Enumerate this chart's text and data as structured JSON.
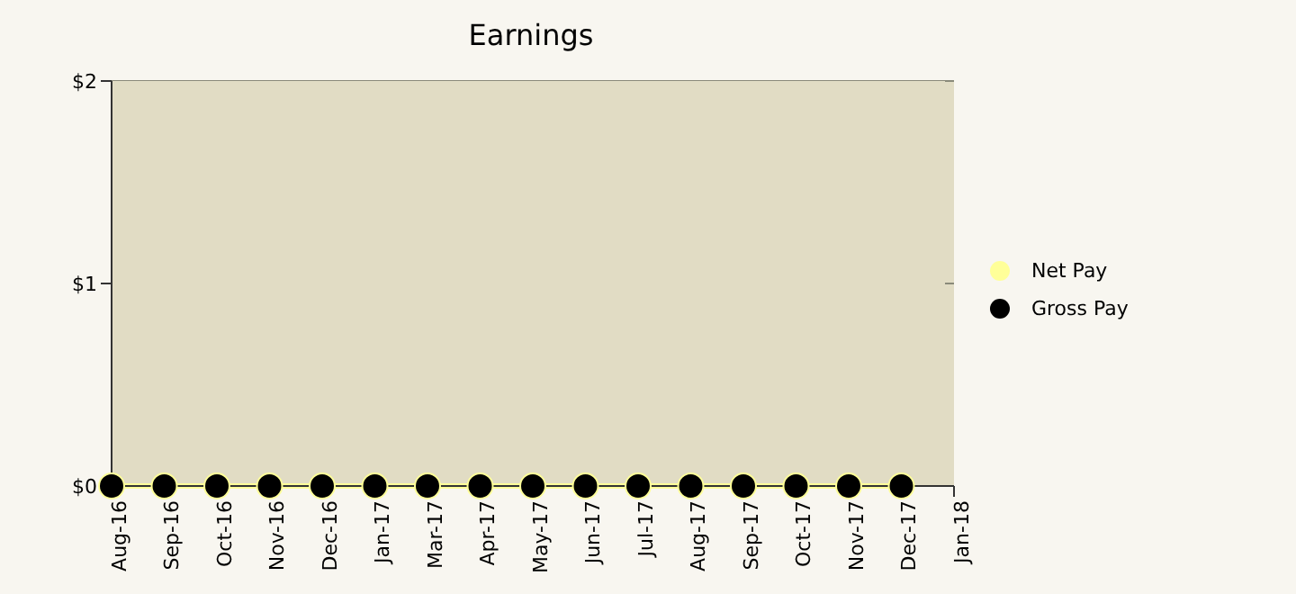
{
  "chart_data": {
    "type": "line",
    "title": "Earnings",
    "categories": [
      "Aug-16",
      "Sep-16",
      "Oct-16",
      "Nov-16",
      "Dec-16",
      "Jan-17",
      "Mar-17",
      "Apr-17",
      "May-17",
      "Jun-17",
      "Jul-17",
      "Aug-17",
      "Sep-17",
      "Oct-17",
      "Nov-17",
      "Dec-17",
      "Jan-18"
    ],
    "series": [
      {
        "name": "Net Pay",
        "color": "#ffff99",
        "values": [
          0,
          0,
          0,
          0,
          0,
          0,
          0,
          0,
          0,
          0,
          0,
          0,
          0,
          0,
          0,
          0,
          null
        ]
      },
      {
        "name": "Gross Pay",
        "type": "scatter",
        "color": "#000000",
        "values": [
          0,
          0,
          0,
          0,
          0,
          0,
          0,
          0,
          0,
          0,
          0,
          0,
          0,
          0,
          0,
          0,
          null
        ]
      }
    ],
    "ylim": [
      0,
      2
    ],
    "yticks": [
      {
        "value": 0,
        "label": "$0"
      },
      {
        "value": 1,
        "label": "$1"
      },
      {
        "value": 2,
        "label": "$2"
      }
    ],
    "grid": "y",
    "legend": "right",
    "marker": "circle"
  }
}
